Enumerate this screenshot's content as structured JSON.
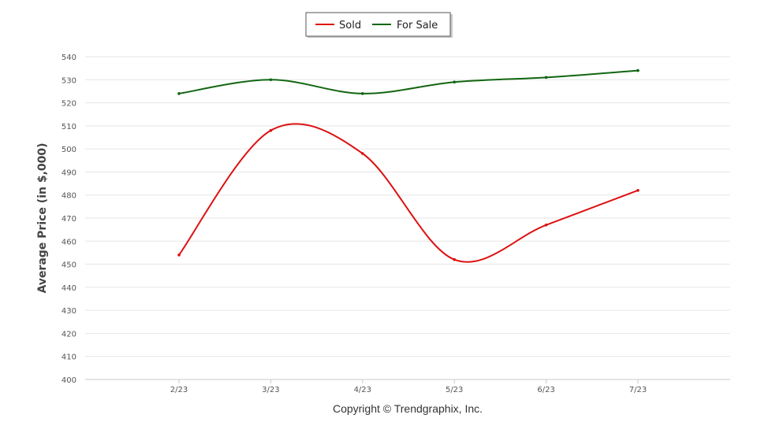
{
  "chart_data": {
    "type": "line",
    "categories": [
      "2/23",
      "3/23",
      "4/23",
      "5/23",
      "6/23",
      "7/23"
    ],
    "series": [
      {
        "name": "Sold",
        "color": "#dd1111",
        "values": [
          454,
          508,
          498,
          452,
          467,
          482
        ]
      },
      {
        "name": "For Sale",
        "color": "#116611",
        "values": [
          524,
          530,
          524,
          529,
          531,
          534
        ]
      }
    ],
    "ylabel": "Average Price (in $,000)",
    "ylim": [
      400,
      540
    ],
    "yticks": [
      400,
      410,
      420,
      430,
      440,
      450,
      460,
      470,
      480,
      490,
      500,
      510,
      520,
      530,
      540
    ],
    "grid": true,
    "legend_position": "top-center"
  },
  "footer": {
    "copyright": "Copyright © Trendgraphix, Inc."
  }
}
